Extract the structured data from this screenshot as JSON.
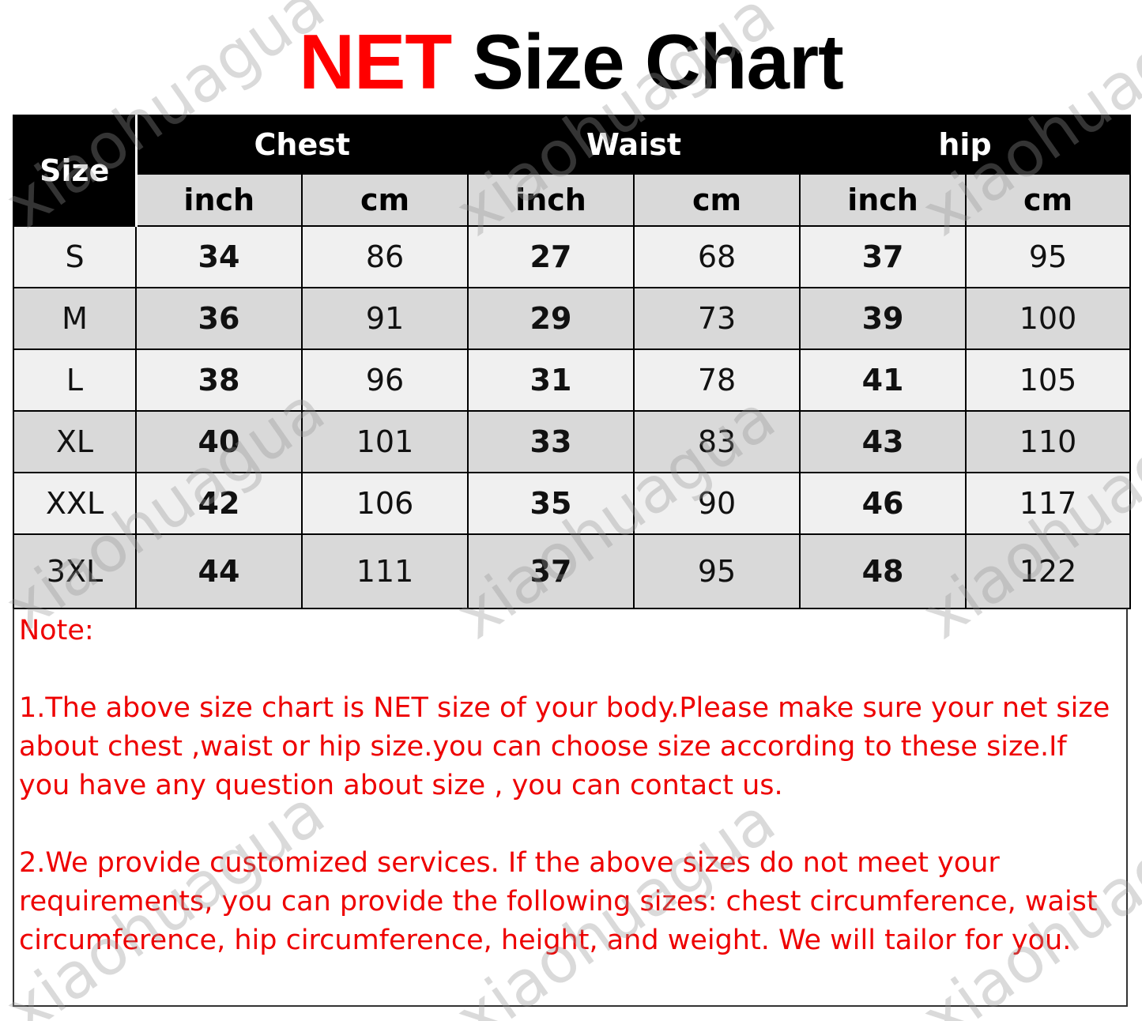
{
  "title": {
    "highlight": "NET",
    "rest": "Size Chart"
  },
  "colors": {
    "title_red": "#ff0000",
    "header_bg": "#000000",
    "subheader_bg": "#d9d9d9",
    "row_light": "#f0f0f0",
    "row_dark": "#d9d9d9",
    "note_red": "#ee0000"
  },
  "table": {
    "size_header": "Size",
    "groups": [
      "Chest",
      "Waist",
      "hip"
    ],
    "units": [
      "inch",
      "cm",
      "inch",
      "cm",
      "inch",
      "cm"
    ],
    "rows": [
      {
        "size": "S",
        "values": [
          "34",
          "86",
          "27",
          "68",
          "37",
          "95"
        ]
      },
      {
        "size": "M",
        "values": [
          "36",
          "91",
          "29",
          "73",
          "39",
          "100"
        ]
      },
      {
        "size": "L",
        "values": [
          "38",
          "96",
          "31",
          "78",
          "41",
          "105"
        ]
      },
      {
        "size": "XL",
        "values": [
          "40",
          "101",
          "33",
          "83",
          "43",
          "110"
        ]
      },
      {
        "size": "XXL",
        "values": [
          "42",
          "106",
          "35",
          "90",
          "46",
          "117"
        ]
      },
      {
        "size": "3XL",
        "values": [
          "44",
          "111",
          "37",
          "95",
          "48",
          "122"
        ]
      }
    ]
  },
  "notes": {
    "heading": "Note:",
    "items": [
      "1.The above size chart is NET size of your body.Please make sure your net size about chest ,waist  or hip size.you can choose size according to these size.If you have any question about size , you can contact us.",
      "2.We provide customized services. If the above sizes do not meet your requirements, you can provide the following sizes: chest circumference, waist circumference, hip circumference, height, and weight. We will tailor for you."
    ]
  },
  "watermark": "xiaohuagua"
}
